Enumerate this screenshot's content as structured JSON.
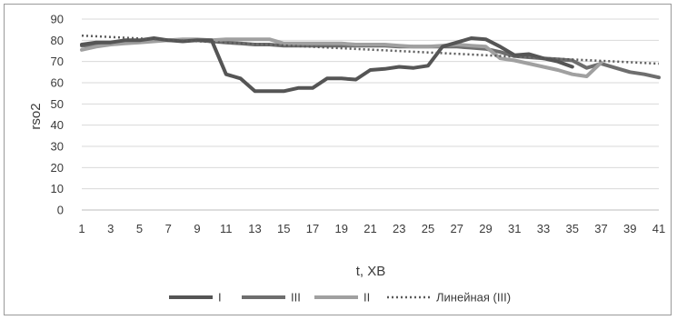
{
  "chart_data": {
    "type": "line",
    "xlabel": "t, ХВ",
    "ylabel": "rso2",
    "ylim": [
      0,
      90
    ],
    "yticks": [
      0,
      10,
      20,
      30,
      40,
      50,
      60,
      70,
      80,
      90
    ],
    "xlim": [
      1,
      41
    ],
    "xticks": [
      1,
      3,
      5,
      7,
      9,
      11,
      13,
      15,
      17,
      19,
      21,
      23,
      25,
      27,
      29,
      31,
      33,
      35,
      37,
      39,
      41
    ],
    "grid": "horizontal",
    "legend_position": "bottom",
    "series": [
      {
        "name": "I",
        "color": "#555555",
        "style": "solid",
        "x": [
          1,
          2,
          3,
          4,
          5,
          6,
          7,
          8,
          9,
          10,
          11,
          12,
          13,
          14,
          15,
          16,
          17,
          18,
          19,
          20,
          21,
          22,
          23,
          24,
          25,
          26,
          27,
          28,
          29,
          30,
          31,
          32,
          33,
          34,
          35
        ],
        "values": [
          78,
          79,
          79,
          80,
          80,
          81,
          80,
          79.5,
          80,
          80,
          64,
          62,
          56,
          56,
          56,
          57.5,
          57.5,
          62,
          62,
          61.5,
          66,
          66.5,
          67.5,
          67,
          68,
          77,
          79,
          81,
          80.5,
          77,
          73,
          73.5,
          71.5,
          70,
          67.5
        ]
      },
      {
        "name": "III",
        "color": "#6e6e6e",
        "style": "solid",
        "x": [
          1,
          2,
          3,
          4,
          5,
          6,
          7,
          8,
          9,
          10,
          11,
          12,
          13,
          14,
          15,
          16,
          17,
          18,
          19,
          20,
          21,
          22,
          23,
          24,
          25,
          26,
          27,
          28,
          29,
          30,
          31,
          32,
          33,
          34,
          35,
          36,
          37,
          38,
          39,
          40,
          41
        ],
        "values": [
          77.5,
          78,
          78.5,
          79,
          79.5,
          80,
          80,
          80,
          80,
          79.5,
          79,
          78.5,
          78,
          78,
          77.5,
          77.5,
          77.5,
          77.5,
          77.5,
          77.5,
          77.5,
          77.5,
          77,
          77,
          77,
          77,
          77,
          76.5,
          76,
          74.5,
          72.5,
          72,
          71.5,
          71,
          70.5,
          67,
          69,
          67,
          65,
          64,
          62.5
        ]
      },
      {
        "name": "II",
        "color": "#a0a0a0",
        "style": "solid",
        "x": [
          1,
          2,
          3,
          4,
          5,
          6,
          7,
          8,
          9,
          10,
          11,
          12,
          13,
          14,
          15,
          16,
          17,
          18,
          19,
          20,
          21,
          22,
          23,
          24,
          25,
          26,
          27,
          28,
          29,
          30,
          31,
          32,
          33,
          34,
          35,
          36,
          37
        ],
        "values": [
          75.5,
          77,
          78,
          78.5,
          79,
          79.5,
          80,
          80.5,
          80.5,
          80,
          80.5,
          80.5,
          80.5,
          80.5,
          78.5,
          78.5,
          78.5,
          78.5,
          78.5,
          78,
          78,
          78,
          77.5,
          77,
          77,
          77.5,
          78,
          77.5,
          77,
          71.5,
          70.5,
          69,
          67.5,
          66,
          64,
          63,
          69.5
        ]
      },
      {
        "name": "Линейная (III)",
        "color": "#5a5a5a",
        "style": "dotted",
        "x": [
          1,
          41
        ],
        "values": [
          82.2,
          69.0
        ]
      }
    ]
  }
}
